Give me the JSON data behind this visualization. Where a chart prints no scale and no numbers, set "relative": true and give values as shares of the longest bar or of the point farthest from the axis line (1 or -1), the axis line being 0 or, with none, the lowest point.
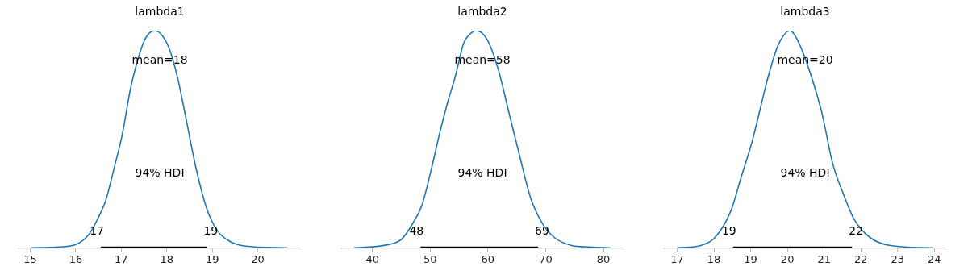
{
  "chart_data": [
    {
      "type": "line",
      "title": "lambda1",
      "relative": true,
      "tick_labels": "x",
      "legend": false,
      "marker": "none",
      "line_style": "solid",
      "xlim": [
        14.76,
        20.93
      ],
      "xticks": [
        15,
        16,
        17,
        18,
        19,
        20
      ],
      "series": [
        {
          "color": "#1f77b4",
          "x": [
            15.01,
            15.63,
            16.0,
            16.28,
            16.45,
            16.66,
            16.87,
            17.02,
            17.2,
            17.34,
            17.52,
            17.73,
            17.87,
            18.05,
            18.23,
            18.4,
            18.64,
            18.88,
            19.11,
            19.35,
            19.7,
            20.65
          ],
          "values": [
            0,
            0.004,
            0.015,
            0.06,
            0.12,
            0.22,
            0.39,
            0.52,
            0.73,
            0.85,
            0.96,
            1.0,
            0.985,
            0.92,
            0.79,
            0.62,
            0.37,
            0.18,
            0.08,
            0.034,
            0.009,
            0
          ]
        },
        {
          "color": "#000000",
          "x": [
            16.55,
            18.88
          ],
          "values": [
            0,
            0
          ]
        }
      ],
      "annotations": [
        "mean=18",
        "94% HDI",
        {
          "text": "17",
          "x": 16.55,
          "y": 0
        },
        {
          "text": "19",
          "x": 18.88,
          "y": 0
        }
      ]
    },
    {
      "type": "line",
      "title": "lambda2",
      "relative": true,
      "tick_labels": "x",
      "legend": false,
      "marker": "none",
      "line_style": "solid",
      "xlim": [
        34.74,
        83.35
      ],
      "xticks": [
        40,
        50,
        60,
        70,
        80
      ],
      "series": [
        {
          "color": "#1f77b4",
          "x": [
            36.79,
            42.74,
            45.07,
            46.93,
            48.56,
            50.19,
            51.58,
            52.98,
            54.37,
            55.77,
            57.16,
            58.0,
            59.95,
            61.81,
            63.67,
            65.53,
            67.4,
            69.26,
            71.58,
            74.37,
            77.63,
            81.21
          ],
          "values": [
            0,
            0.015,
            0.04,
            0.11,
            0.195,
            0.36,
            0.52,
            0.665,
            0.79,
            0.94,
            0.99,
            1.0,
            0.955,
            0.82,
            0.62,
            0.42,
            0.23,
            0.12,
            0.046,
            0.012,
            0.004,
            0
          ]
        },
        {
          "color": "#000000",
          "x": [
            48.33,
            68.7
          ],
          "values": [
            0,
            0
          ]
        }
      ],
      "annotations": [
        "mean=58",
        "94% HDI",
        {
          "text": "48",
          "x": 48.33,
          "y": 0
        },
        {
          "text": "69",
          "x": 68.7,
          "y": 0
        }
      ]
    },
    {
      "type": "line",
      "title": "lambda3",
      "relative": true,
      "tick_labels": "x",
      "legend": false,
      "marker": "none",
      "line_style": "solid",
      "xlim": [
        16.66,
        24.3
      ],
      "xticks": [
        17,
        18,
        19,
        20,
        21,
        22,
        23,
        24
      ],
      "series": [
        {
          "color": "#1f77b4",
          "x": [
            17.0,
            17.66,
            18.02,
            18.46,
            18.75,
            19.04,
            19.26,
            19.48,
            19.74,
            20.07,
            20.28,
            20.65,
            20.94,
            21.23,
            21.53,
            21.82,
            22.26,
            22.77,
            23.96
          ],
          "values": [
            0,
            0.012,
            0.046,
            0.17,
            0.33,
            0.49,
            0.64,
            0.79,
            0.93,
            1.0,
            0.955,
            0.79,
            0.62,
            0.39,
            0.245,
            0.13,
            0.046,
            0.012,
            0
          ]
        },
        {
          "color": "#000000",
          "x": [
            18.52,
            21.76
          ],
          "values": [
            0,
            0
          ]
        }
      ],
      "annotations": [
        "mean=20",
        "94% HDI",
        {
          "text": "19",
          "x": 18.52,
          "y": 0
        },
        {
          "text": "22",
          "x": 21.76,
          "y": 0
        }
      ]
    }
  ]
}
